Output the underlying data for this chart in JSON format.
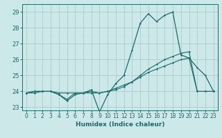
{
  "xlabel": "Humidex (Indice chaleur)",
  "background_color": "#cce8e8",
  "grid_color": "#aacccc",
  "line_color": "#1a6b6b",
  "xlim": [
    -0.5,
    23.5
  ],
  "ylim": [
    22.8,
    29.5
  ],
  "xticks": [
    0,
    1,
    2,
    3,
    4,
    5,
    6,
    7,
    8,
    9,
    10,
    11,
    12,
    13,
    14,
    15,
    16,
    17,
    18,
    19,
    20,
    21,
    22,
    23
  ],
  "yticks": [
    23,
    24,
    25,
    26,
    27,
    28,
    29
  ],
  "series1_y": [
    23.9,
    24.0,
    24.0,
    24.0,
    23.8,
    23.4,
    23.8,
    23.9,
    24.1,
    22.7,
    23.8,
    24.5,
    25.0,
    26.6,
    28.3,
    28.9,
    28.4,
    28.8,
    29.0,
    26.3,
    26.1,
    25.5,
    25.0,
    24.0
  ],
  "series2_y": [
    23.9,
    24.0,
    24.0,
    24.0,
    23.8,
    23.5,
    23.9,
    23.9,
    24.0,
    23.9,
    24.0,
    24.1,
    24.3,
    24.6,
    25.0,
    25.4,
    25.7,
    26.0,
    26.2,
    26.4,
    26.5,
    24.0,
    24.0,
    24.0
  ],
  "series3_y": [
    23.9,
    23.9,
    24.0,
    24.0,
    23.9,
    23.9,
    23.9,
    23.9,
    23.9,
    23.9,
    24.0,
    24.2,
    24.4,
    24.6,
    24.9,
    25.2,
    25.4,
    25.6,
    25.8,
    26.0,
    26.1,
    24.0,
    24.0,
    24.0
  ]
}
